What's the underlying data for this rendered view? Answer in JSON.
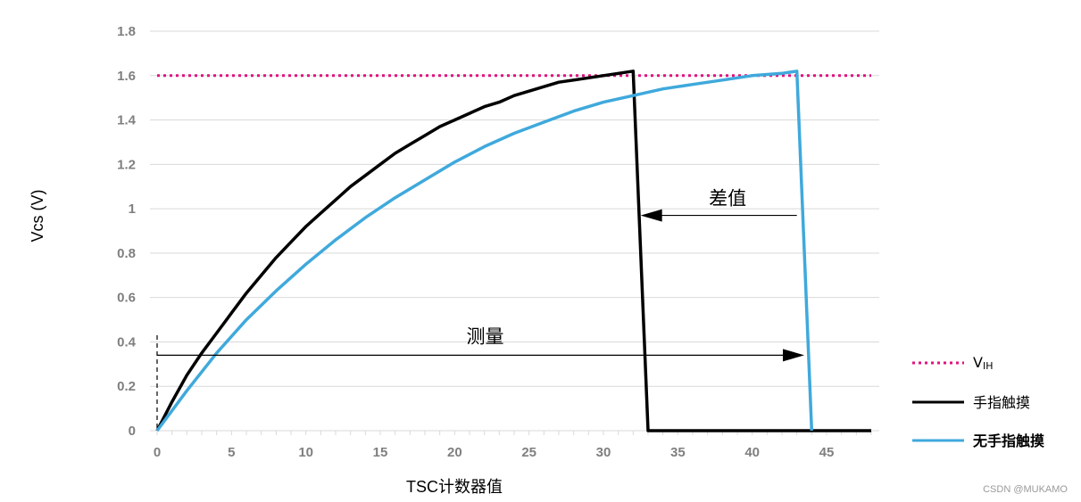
{
  "chart_data": {
    "type": "line",
    "xlabel": "TSC计数器值",
    "ylabel": "Vcs (V)",
    "xlim": [
      0,
      48
    ],
    "ylim": [
      0,
      1.8
    ],
    "xticks": [
      0,
      5,
      10,
      15,
      20,
      25,
      30,
      35,
      40,
      45
    ],
    "yticks": [
      0,
      0.2,
      0.4,
      0.6,
      0.8,
      1,
      1.2,
      1.4,
      1.6,
      1.8
    ],
    "ytick_labels": [
      "0",
      "0.2",
      "0.4",
      "0.6",
      "0.8",
      "1",
      "1.2",
      "1.4",
      "1.6",
      "1.8"
    ],
    "grid": "horizontal",
    "legend_position": "right",
    "series": [
      {
        "name": "VIH",
        "color": "#e0127f",
        "style": "dotted",
        "x": [
          0,
          48
        ],
        "y": [
          1.6,
          1.6
        ]
      },
      {
        "name": "手指触摸",
        "color": "#000000",
        "style": "solid",
        "x": [
          0,
          1,
          2,
          3,
          4,
          5,
          6,
          7,
          8,
          9,
          10,
          11,
          12,
          13,
          14,
          15,
          16,
          17,
          18,
          19,
          20,
          21,
          22,
          23,
          24,
          25,
          26,
          27,
          28,
          29,
          30,
          31,
          32,
          33,
          48
        ],
        "y": [
          0,
          0.13,
          0.25,
          0.35,
          0.44,
          0.53,
          0.62,
          0.7,
          0.78,
          0.85,
          0.92,
          0.98,
          1.04,
          1.1,
          1.15,
          1.2,
          1.25,
          1.29,
          1.33,
          1.37,
          1.4,
          1.43,
          1.46,
          1.48,
          1.51,
          1.53,
          1.55,
          1.57,
          1.58,
          1.59,
          1.6,
          1.61,
          1.62,
          0,
          0
        ]
      },
      {
        "name": "无手指触摸",
        "color": "#3fa9dc",
        "style": "solid",
        "x": [
          0,
          2,
          4,
          6,
          8,
          10,
          12,
          14,
          16,
          18,
          20,
          22,
          24,
          26,
          28,
          30,
          32,
          34,
          36,
          38,
          40,
          42,
          43,
          44
        ],
        "y": [
          0,
          0.18,
          0.35,
          0.5,
          0.63,
          0.75,
          0.86,
          0.96,
          1.05,
          1.13,
          1.21,
          1.28,
          1.34,
          1.39,
          1.44,
          1.48,
          1.51,
          1.54,
          1.56,
          1.58,
          1.6,
          1.61,
          1.62,
          0
        ]
      }
    ],
    "annotations": [
      {
        "text": "差值",
        "arrow": "left",
        "from_x": 43,
        "to_x": 32.5,
        "y": 0.97
      },
      {
        "text": "测量",
        "arrow": "right",
        "from_x": 0,
        "to_x": 43.5,
        "y": 0.34
      }
    ]
  },
  "legend": {
    "items": [
      {
        "label_main": "V",
        "label_sub": "IH",
        "bold": false
      },
      {
        "label_main": "手指触摸",
        "label_sub": "",
        "bold": false
      },
      {
        "label_main": "无手指触摸",
        "label_sub": "",
        "bold": true
      }
    ]
  },
  "watermark": "CSDN @MUKAMO"
}
